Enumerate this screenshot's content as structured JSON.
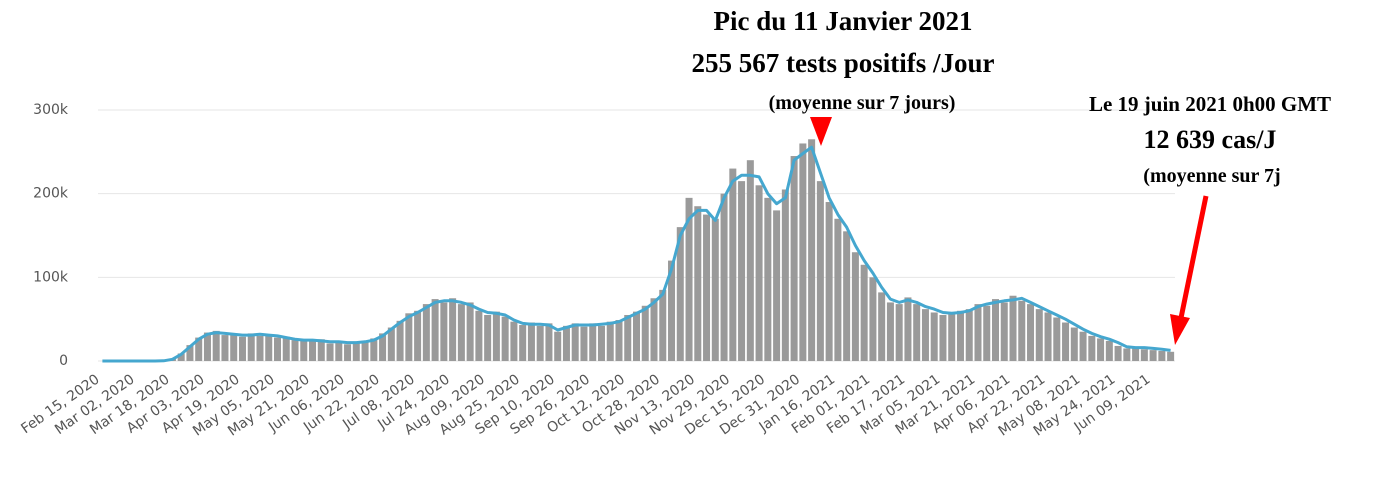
{
  "chart_data": {
    "type": "bar",
    "categories": [
      "Feb 15, 2020",
      null,
      null,
      null,
      "Mar 02, 2020",
      null,
      null,
      null,
      "Mar 18, 2020",
      null,
      null,
      null,
      "Apr 03, 2020",
      null,
      null,
      null,
      "Apr 19, 2020",
      null,
      null,
      null,
      "May 05, 2020",
      null,
      null,
      null,
      "May 21, 2020",
      null,
      null,
      null,
      "Jun 06, 2020",
      null,
      null,
      null,
      "Jun 22, 2020",
      null,
      null,
      null,
      "Jul 08, 2020",
      null,
      null,
      null,
      "Jul 24, 2020",
      null,
      null,
      null,
      "Aug 09, 2020",
      null,
      null,
      null,
      "Aug 25, 2020",
      null,
      null,
      null,
      "Sep 10, 2020",
      null,
      null,
      null,
      "Sep 26, 2020",
      null,
      null,
      null,
      "Oct 12, 2020",
      null,
      null,
      null,
      "Oct 28, 2020",
      null,
      null,
      null,
      "Nov 13, 2020",
      null,
      null,
      null,
      "Nov 29, 2020",
      null,
      null,
      null,
      "Dec 15, 2020",
      null,
      null,
      null,
      "Dec 31, 2020",
      null,
      null,
      null,
      "Jan 16, 2021",
      null,
      null,
      null,
      "Feb 01, 2021",
      null,
      null,
      null,
      "Feb 17, 2021",
      null,
      null,
      null,
      "Mar 05, 2021",
      null,
      null,
      null,
      "Mar 21, 2021",
      null,
      null,
      null,
      "Apr 06, 2021",
      null,
      null,
      null,
      "Apr 22, 2021",
      null,
      null,
      null,
      "May 08, 2021",
      null,
      null,
      null,
      "May 24, 2021",
      null,
      null,
      null,
      "Jun 09, 2021",
      null,
      null
    ],
    "series": [
      {
        "type": "bar",
        "color": "#9a9a9a",
        "values": [
          0,
          0,
          0,
          0,
          0,
          0,
          0,
          300,
          2500,
          9000,
          19000,
          28000,
          34000,
          36000,
          31000,
          33000,
          29000,
          33000,
          30000,
          32000,
          28000,
          29000,
          25000,
          26000,
          24000,
          26000,
          21000,
          24000,
          20000,
          23000,
          24000,
          27000,
          33000,
          40000,
          48000,
          57000,
          60000,
          68000,
          74000,
          70000,
          75000,
          68000,
          70000,
          60000,
          55000,
          59000,
          53000,
          47000,
          43000,
          46000,
          42000,
          45000,
          35000,
          42000,
          45000,
          41000,
          45000,
          42000,
          47000,
          49000,
          55000,
          59000,
          66000,
          75000,
          85000,
          120000,
          160000,
          195000,
          185000,
          175000,
          170000,
          200000,
          230000,
          215000,
          240000,
          210000,
          195000,
          180000,
          205000,
          245000,
          260000,
          265000,
          215000,
          190000,
          170000,
          155000,
          130000,
          115000,
          100000,
          82000,
          70000,
          68000,
          76000,
          68000,
          62000,
          58000,
          55000,
          56000,
          60000,
          62000,
          68000,
          66000,
          74000,
          70000,
          78000,
          72000,
          68000,
          62000,
          58000,
          52000,
          46000,
          40000,
          35000,
          30000,
          27000,
          24000,
          18000,
          15000,
          15000,
          14000,
          13000,
          12000,
          11000
        ]
      },
      {
        "type": "line",
        "color": "#45a7cf",
        "values": [
          0,
          0,
          0,
          0,
          0,
          0,
          0,
          200,
          2000,
          8000,
          17000,
          26000,
          32000,
          34000,
          33000,
          32000,
          31000,
          31000,
          32000,
          31000,
          30000,
          28000,
          26000,
          25000,
          25000,
          24000,
          23000,
          23000,
          22000,
          22000,
          23000,
          25000,
          30000,
          38000,
          46000,
          53000,
          58000,
          64000,
          70000,
          72000,
          72000,
          70000,
          67000,
          62000,
          58000,
          57000,
          55000,
          49000,
          45000,
          44000,
          44000,
          43000,
          37000,
          40000,
          43000,
          43000,
          43000,
          44000,
          45000,
          47000,
          52000,
          57000,
          62000,
          70000,
          80000,
          110000,
          150000,
          170000,
          180000,
          180000,
          168000,
          195000,
          215000,
          222000,
          222000,
          220000,
          200000,
          188000,
          195000,
          240000,
          248000,
          255567,
          225000,
          195000,
          175000,
          160000,
          138000,
          120000,
          105000,
          88000,
          74000,
          70000,
          73000,
          70000,
          65000,
          62000,
          58000,
          57000,
          58000,
          60000,
          65000,
          68000,
          70000,
          72000,
          73000,
          75000,
          70000,
          65000,
          60000,
          55000,
          50000,
          44000,
          38000,
          33000,
          29000,
          26000,
          22000,
          17000,
          16000,
          16000,
          15000,
          14000,
          12639
        ]
      }
    ],
    "ylim": [
      0,
      300000
    ],
    "yticks": [
      0,
      {
        "value": 100000,
        "label": "100k"
      },
      {
        "value": 200000,
        "label": "200k"
      },
      {
        "value": 300000,
        "label": "300k"
      }
    ],
    "grid": true,
    "annotations": [
      {
        "text": "Pic du 11 Janvier 2021"
      },
      {
        "text": "255 567 tests positifs /Jour"
      },
      {
        "text": "(moyenne sur 7 jours)"
      },
      {
        "text": "Le 19 juin 2021 0h00 GMT"
      },
      {
        "text": "12 639 cas/J"
      },
      {
        "text": "(moyenne sur 7j"
      }
    ]
  }
}
